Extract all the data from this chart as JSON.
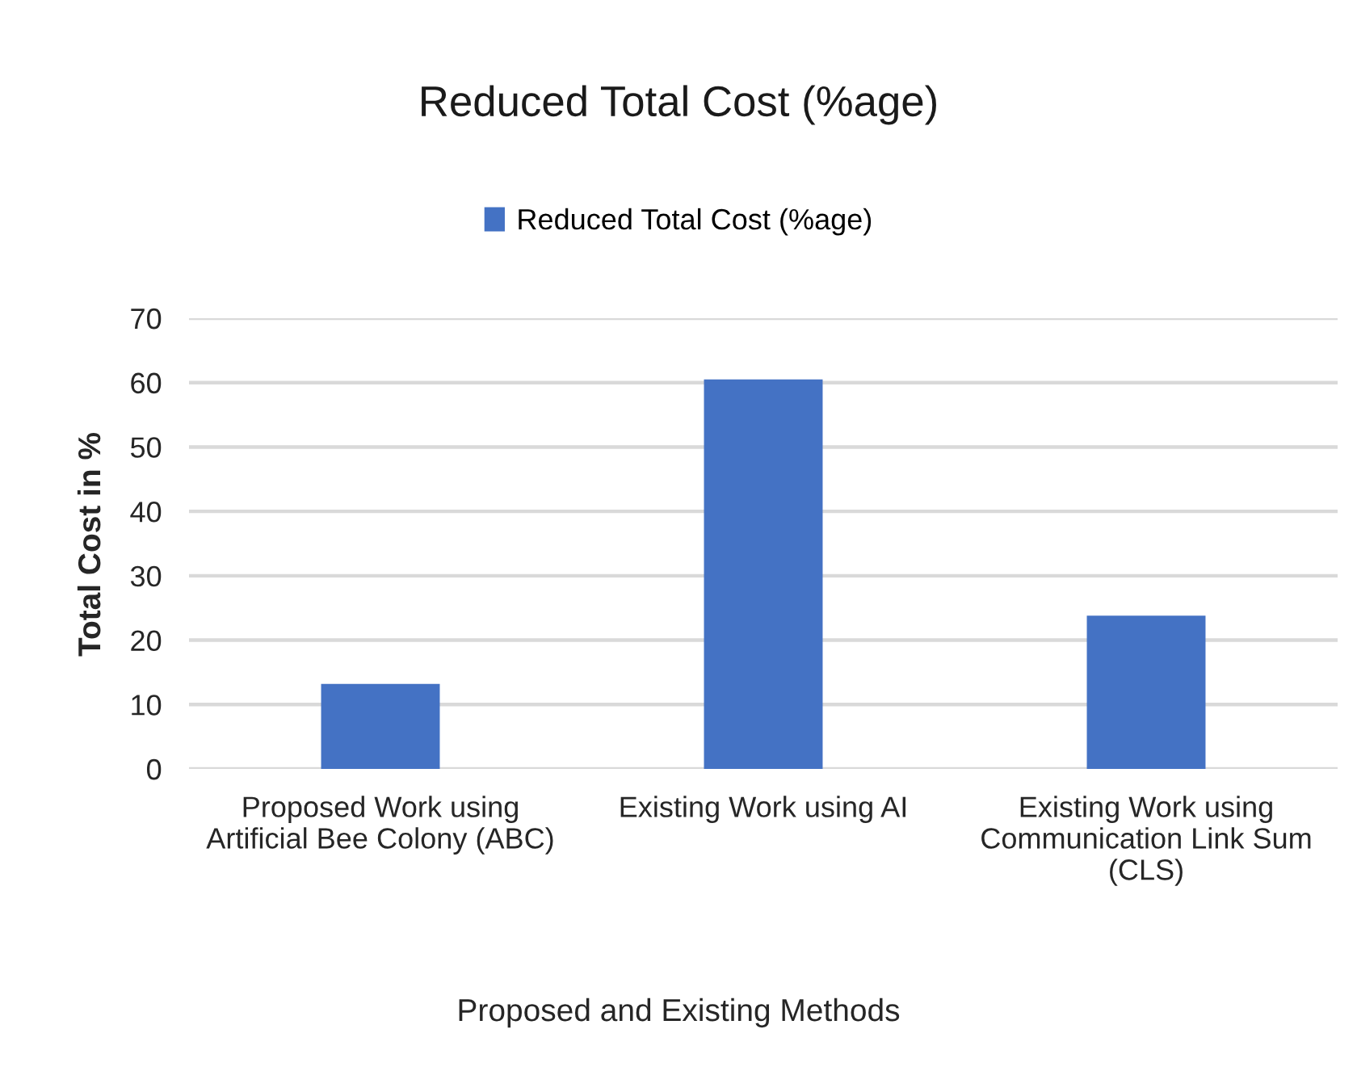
{
  "chart_data": {
    "type": "bar",
    "title": "Reduced Total Cost (%age)",
    "categories": [
      "Proposed Work using\nArtificial Bee Colony (ABC)",
      "Existing Work using AI",
      "Existing Work using\nCommunication Link Sum\n(CLS)"
    ],
    "series": [
      {
        "name": "Reduced Total Cost (%age)",
        "color": "#4472c4",
        "values": [
          13.2,
          60.5,
          23.8
        ]
      }
    ],
    "xlabel": "Proposed and Existing Methods",
    "ylabel": "Total Cost in %",
    "ylim": [
      0,
      70
    ],
    "yticks": [
      0,
      10,
      20,
      30,
      40,
      50,
      60,
      70
    ],
    "grid": "y",
    "legend": "top"
  }
}
